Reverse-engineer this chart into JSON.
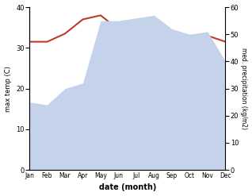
{
  "months": [
    "Jan",
    "Feb",
    "Mar",
    "Apr",
    "May",
    "Jun",
    "Jul",
    "Aug",
    "Sep",
    "Oct",
    "Nov",
    "Dec"
  ],
  "temp_max": [
    31.5,
    31.5,
    33.5,
    37.0,
    38.0,
    34.5,
    33.5,
    33.5,
    32.5,
    32.5,
    33.0,
    31.5
  ],
  "precip": [
    25,
    24,
    30,
    32,
    55,
    55,
    56,
    57,
    52,
    50,
    51,
    40
  ],
  "temp_color": "#c0392b",
  "precip_fill_color": "#c5d3ea",
  "bg_color": "#ffffff",
  "xlabel": "date (month)",
  "ylabel_left": "max temp (C)",
  "ylabel_right": "med. precipitation (kg/m2)",
  "ylim_left": [
    0,
    40
  ],
  "ylim_right": [
    0,
    60
  ],
  "yticks_left": [
    0,
    10,
    20,
    30,
    40
  ],
  "yticks_right": [
    0,
    10,
    20,
    30,
    40,
    50,
    60
  ]
}
